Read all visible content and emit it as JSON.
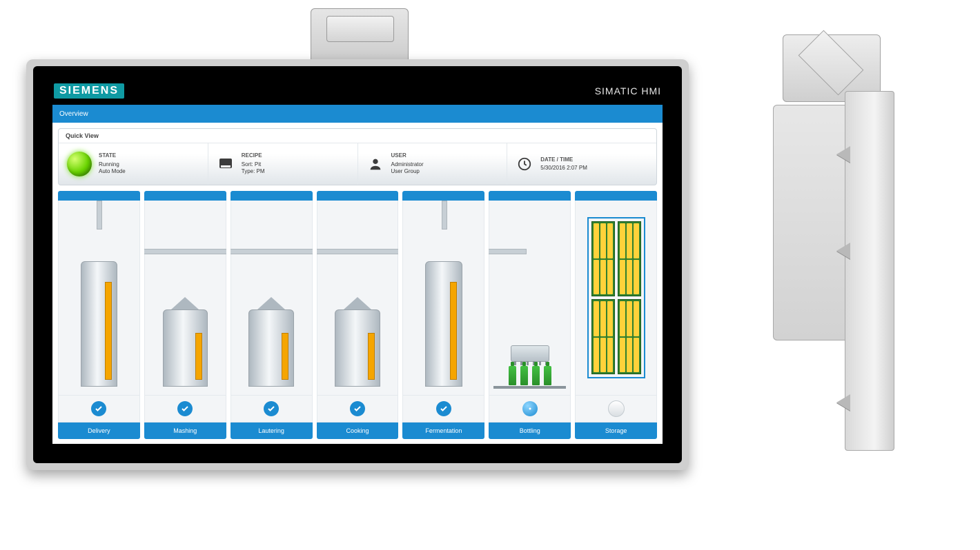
{
  "bezel": {
    "brand": "SIEMENS",
    "product": "SIMATIC HMI"
  },
  "colors": {
    "primary": "#1b8bd1",
    "lane_bg": "#f3f5f7",
    "led_green": "#69d400",
    "check_blue": "#1b8bd1",
    "amber": "#f5a500",
    "bezel_black": "#000000",
    "frame_silver": "#cfcfcf"
  },
  "screen": {
    "title": "Overview",
    "quickview": {
      "panel_title": "Quick View",
      "state": {
        "heading": "STATE",
        "line1": "Running",
        "line2": "Auto Mode"
      },
      "recipe": {
        "heading": "RECIPE",
        "line1": "Sort:   Pit",
        "line2": "Type:   PM"
      },
      "user": {
        "heading": "USER",
        "line1": "Administrator",
        "line2": "User Group"
      },
      "datetime": {
        "heading": "DATE / TIME",
        "line1": "5/30/2016 2:07 PM"
      }
    },
    "lanes": [
      {
        "label": "Delivery",
        "status": "ok",
        "vessel": "tall_tank"
      },
      {
        "label": "Mashing",
        "status": "ok",
        "vessel": "kettle"
      },
      {
        "label": "Lautering",
        "status": "ok",
        "vessel": "kettle"
      },
      {
        "label": "Cooking",
        "status": "ok",
        "vessel": "kettle"
      },
      {
        "label": "Fermentation",
        "status": "ok",
        "vessel": "tall_tank"
      },
      {
        "label": "Bottling",
        "status": "busy",
        "vessel": "bottling"
      },
      {
        "label": "Storage",
        "status": "idle",
        "vessel": "rack"
      }
    ]
  }
}
